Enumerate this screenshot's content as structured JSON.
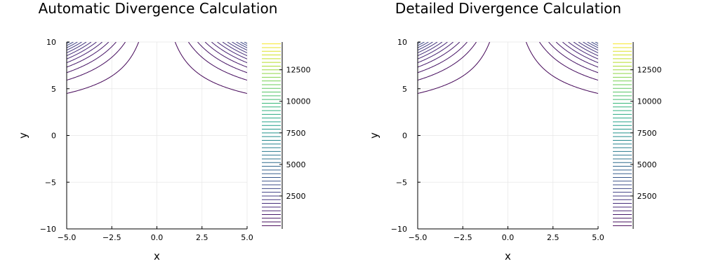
{
  "chart_data": [
    {
      "type": "contour",
      "title": "Automatic Divergence Calculation",
      "xlabel": "x",
      "ylabel": "y",
      "xlim": [
        -5,
        5
      ],
      "ylim": [
        -10,
        10
      ],
      "x_ticks": [
        -5,
        -2.5,
        0,
        2.5,
        5
      ],
      "x_tick_labels": [
        "−5.0",
        "−2.5",
        "0.0",
        "2.5",
        "5.0"
      ],
      "y_ticks": [
        -10,
        -5,
        0,
        5,
        10
      ],
      "y_tick_labels": [
        "−10",
        "−5",
        "0",
        "5",
        "10"
      ],
      "grid": true,
      "colormap": "viridis",
      "colorbar": {
        "min": 0,
        "max": 14700,
        "ticks": [
          2500,
          5000,
          7500,
          10000,
          12500
        ],
        "tick_labels": [
          "2500",
          "5000",
          "7500",
          "10000",
          "12500"
        ],
        "levels": 50
      },
      "contour_levels": {
        "start": 150,
        "step": 300,
        "count": 49
      },
      "field": "x^2 * y^4 / 68 (approx.)"
    },
    {
      "type": "contour",
      "title": "Detailed Divergence Calculation",
      "xlabel": "x",
      "ylabel": "y",
      "xlim": [
        -5,
        5
      ],
      "ylim": [
        -10,
        10
      ],
      "x_ticks": [
        -5,
        -2.5,
        0,
        2.5,
        5
      ],
      "x_tick_labels": [
        "−5.0",
        "−2.5",
        "0.0",
        "2.5",
        "5.0"
      ],
      "y_ticks": [
        -10,
        -5,
        0,
        5,
        10
      ],
      "y_tick_labels": [
        "−10",
        "−5",
        "0",
        "5",
        "10"
      ],
      "grid": true,
      "colormap": "viridis",
      "colorbar": {
        "min": 0,
        "max": 14700,
        "ticks": [
          2500,
          5000,
          7500,
          10000,
          12500
        ],
        "tick_labels": [
          "2500",
          "5000",
          "7500",
          "10000",
          "12500"
        ],
        "levels": 50
      },
      "contour_levels": {
        "start": 150,
        "step": 300,
        "count": 49
      },
      "field": "x^2 * y^4 / 68 (approx.)"
    }
  ]
}
